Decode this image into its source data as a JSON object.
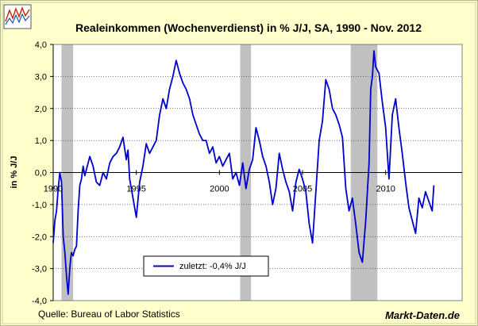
{
  "logo": {
    "icon": "line-chart-logo-icon"
  },
  "chart_data": {
    "type": "line",
    "title": "Realeinkommen (Wochenverdienst) in % J/J, SA, 1990 - Nov. 2012",
    "xlabel": "",
    "ylabel": "in %  J/J",
    "xlim": [
      1990,
      2014.6
    ],
    "ylim": [
      -4.0,
      4.0
    ],
    "yticks": [
      -4.0,
      -3.0,
      -2.0,
      -1.0,
      0.0,
      1.0,
      2.0,
      3.0,
      4.0
    ],
    "yticklabels": [
      "-4,0",
      "-3,0",
      "-2,0",
      "-1,0",
      "0,0",
      "1,0",
      "2,0",
      "3,0",
      "4,0"
    ],
    "xticks": [
      1990,
      1995,
      2000,
      2005,
      2010
    ],
    "xticklabels": [
      "1990",
      "1995",
      "2000",
      "2005",
      "2010"
    ],
    "grid": "horizontal",
    "legend_position": "bottom-left",
    "recession_bands": [
      {
        "start": 1990.5,
        "end": 1991.2
      },
      {
        "start": 2001.25,
        "end": 2001.9
      },
      {
        "start": 2007.9,
        "end": 2009.5
      }
    ],
    "series": [
      {
        "name": "zuletzt: -0,4% J/J",
        "color": "#0000cc",
        "x": [
          1990.0,
          1990.1,
          1990.2,
          1990.3,
          1990.4,
          1990.5,
          1990.6,
          1990.7,
          1990.8,
          1990.9,
          1991.0,
          1991.05,
          1991.1,
          1991.2,
          1991.3,
          1991.4,
          1991.5,
          1991.6,
          1991.7,
          1991.8,
          1991.9,
          1992.0,
          1992.2,
          1992.4,
          1992.6,
          1992.8,
          1993.0,
          1993.2,
          1993.4,
          1993.6,
          1993.8,
          1994.0,
          1994.2,
          1994.4,
          1994.5,
          1994.6,
          1994.8,
          1995.0,
          1995.2,
          1995.4,
          1995.6,
          1995.8,
          1996.0,
          1996.2,
          1996.4,
          1996.6,
          1996.8,
          1997.0,
          1997.2,
          1997.4,
          1997.6,
          1997.8,
          1998.0,
          1998.2,
          1998.4,
          1998.6,
          1998.8,
          1999.0,
          1999.2,
          1999.4,
          1999.6,
          1999.8,
          2000.0,
          2000.2,
          2000.4,
          2000.6,
          2000.8,
          2001.0,
          2001.2,
          2001.4,
          2001.6,
          2001.8,
          2002.0,
          2002.2,
          2002.4,
          2002.6,
          2002.8,
          2003.0,
          2003.2,
          2003.4,
          2003.6,
          2003.8,
          2004.0,
          2004.2,
          2004.4,
          2004.6,
          2004.8,
          2005.0,
          2005.2,
          2005.4,
          2005.6,
          2005.8,
          2006.0,
          2006.2,
          2006.4,
          2006.6,
          2006.8,
          2007.0,
          2007.2,
          2007.4,
          2007.6,
          2007.8,
          2008.0,
          2008.2,
          2008.4,
          2008.6,
          2008.8,
          2009.0,
          2009.1,
          2009.2,
          2009.3,
          2009.4,
          2009.6,
          2009.8,
          2010.0,
          2010.2,
          2010.4,
          2010.6,
          2010.8,
          2011.0,
          2011.2,
          2011.4,
          2011.6,
          2011.8,
          2012.0,
          2012.2,
          2012.4,
          2012.6,
          2012.8,
          2012.9
        ],
        "y": [
          -2.2,
          -1.5,
          -1.2,
          -0.5,
          0.0,
          -0.3,
          -2.0,
          -2.5,
          -3.2,
          -3.8,
          -3.0,
          -2.7,
          -2.5,
          -2.6,
          -2.4,
          -2.3,
          -1.2,
          -0.4,
          -0.2,
          0.2,
          -0.1,
          0.1,
          0.5,
          0.2,
          -0.3,
          -0.4,
          0.0,
          -0.2,
          0.3,
          0.5,
          0.6,
          0.8,
          1.1,
          0.4,
          0.7,
          -0.2,
          -0.8,
          -1.4,
          -0.3,
          0.2,
          0.9,
          0.6,
          0.8,
          1.0,
          1.8,
          2.3,
          2.0,
          2.6,
          3.0,
          3.5,
          3.1,
          2.8,
          2.6,
          2.3,
          1.8,
          1.5,
          1.2,
          1.0,
          1.0,
          0.6,
          0.8,
          0.3,
          0.5,
          0.2,
          0.4,
          0.6,
          -0.2,
          0.0,
          -0.4,
          0.3,
          -0.5,
          0.1,
          0.4,
          1.4,
          1.0,
          0.5,
          0.2,
          -0.3,
          -1.0,
          -0.5,
          0.6,
          0.1,
          -0.3,
          -0.6,
          -1.2,
          -0.3,
          0.1,
          -0.2,
          -0.6,
          -1.6,
          -2.2,
          -0.6,
          1.0,
          1.6,
          2.9,
          2.6,
          2.0,
          1.8,
          1.5,
          1.1,
          -0.5,
          -1.2,
          -0.8,
          -1.6,
          -2.5,
          -2.8,
          -1.5,
          0.3,
          2.6,
          3.0,
          3.8,
          3.3,
          3.1,
          2.2,
          1.4,
          -0.2,
          1.8,
          2.3,
          1.4,
          0.6,
          -0.3,
          -1.1,
          -1.5,
          -1.9,
          -0.8,
          -1.1,
          -0.6,
          -0.9,
          -1.2,
          -0.4
        ]
      }
    ]
  }
}
